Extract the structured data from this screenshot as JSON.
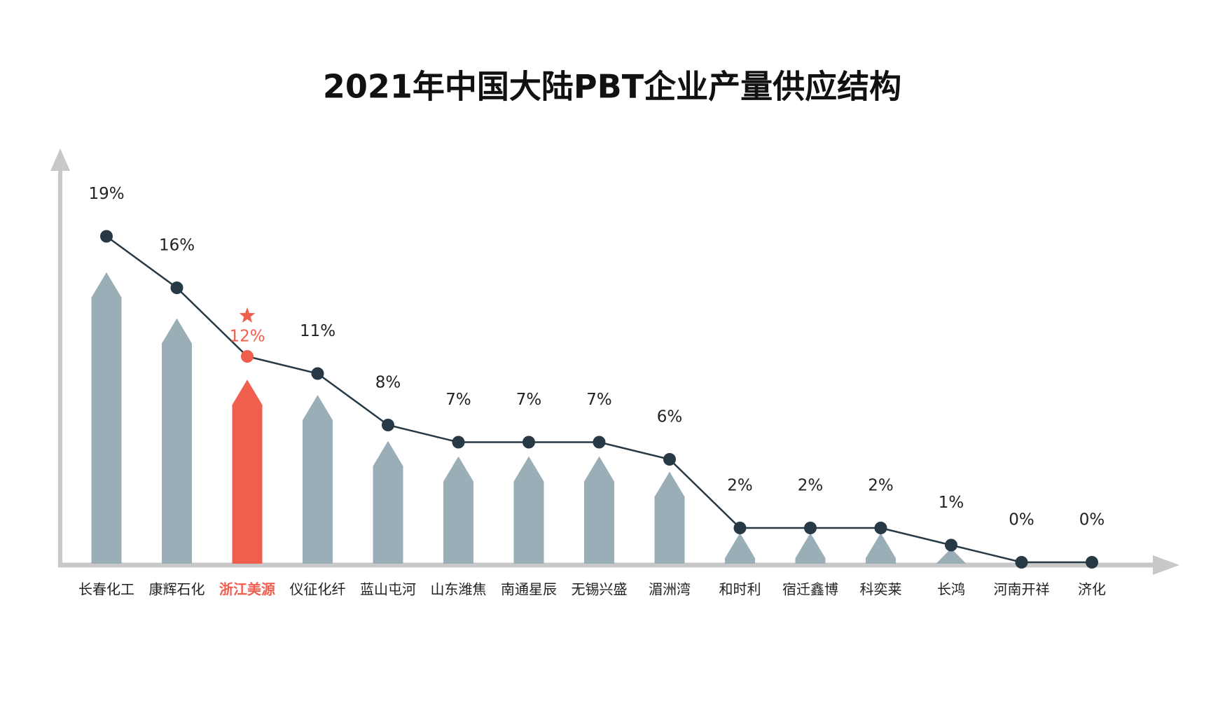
{
  "chart_data": {
    "type": "bar-line",
    "title": "2021年中国大陆PBT企业产量供应结构",
    "categories": [
      "长春化工",
      "康辉石化",
      "浙江美源",
      "仪征化纤",
      "蓝山屯河",
      "山东潍焦",
      "南通星辰",
      "无锡兴盛",
      "湄洲湾",
      "和时利",
      "宿迁鑫博",
      "科奕莱",
      "长鸿",
      "河南开祥",
      "济化"
    ],
    "values": [
      19,
      16,
      12,
      11,
      8,
      7,
      7,
      7,
      6,
      2,
      2,
      2,
      1,
      0,
      0
    ],
    "value_labels": [
      "19%",
      "16%",
      "12%",
      "11%",
      "8%",
      "7%",
      "7%",
      "7%",
      "6%",
      "2%",
      "2%",
      "2%",
      "1%",
      "0%",
      "0%"
    ],
    "bar_color": "#9aaeb8",
    "line_color": "#263945",
    "highlight_index": 2,
    "highlight_color": "#f05e4e"
  }
}
